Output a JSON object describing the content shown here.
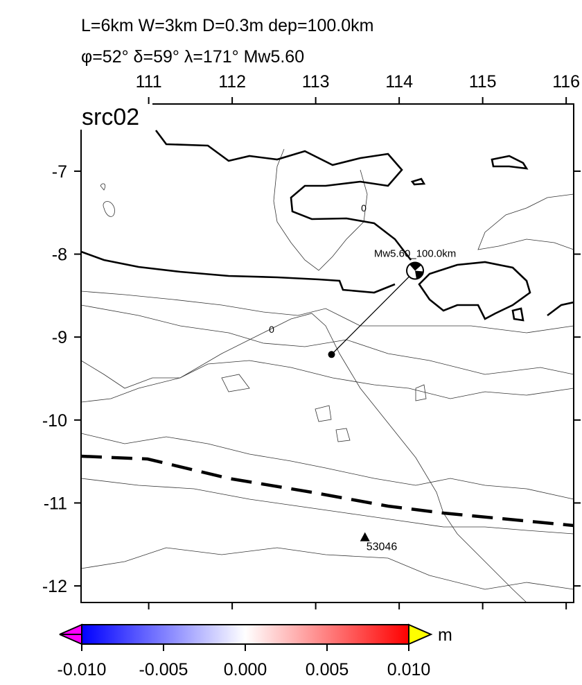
{
  "header": {
    "line1": "L=6km W=3km D=0.3m dep=100.0km",
    "line2": "φ=52° δ=59° λ=171° Mw5.60"
  },
  "map": {
    "label": "src02",
    "xlim": [
      110.19,
      116.09
    ],
    "ylim": [
      -6.19,
      -12.2
    ],
    "xticks": [
      111,
      112,
      113,
      114,
      115,
      116
    ],
    "yticks": [
      -7,
      -8,
      -9,
      -10,
      -11,
      -12
    ],
    "event": {
      "label": "Mw5.60_100.0km",
      "lon": 114.19,
      "lat": -8.2
    },
    "centroid": {
      "lon": 113.19,
      "lat": -9.21
    },
    "station": {
      "label": "53046",
      "lon": 113.59,
      "lat": -11.42
    },
    "contour_labels": [
      "0",
      "0"
    ]
  },
  "colorbar": {
    "range": [
      -0.01,
      0.01
    ],
    "unit": "m",
    "ticks": [
      {
        "value": -0.01,
        "label": "-0.010"
      },
      {
        "value": -0.005,
        "label": "-0.005"
      },
      {
        "value": 0,
        "label": "0.000"
      },
      {
        "value": 0.005,
        "label": "0.005"
      },
      {
        "value": 0.01,
        "label": "0.010"
      }
    ]
  }
}
